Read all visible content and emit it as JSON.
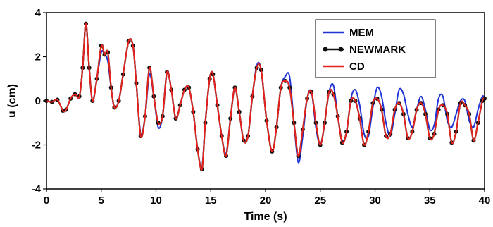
{
  "chart_data": {
    "type": "line",
    "title": "",
    "xlabel": "Time (s)",
    "ylabel": "u (cm)",
    "xlim": [
      0,
      40
    ],
    "ylim": [
      -4,
      4
    ],
    "xticks": [
      0,
      5,
      10,
      15,
      20,
      25,
      30,
      35,
      40
    ],
    "yticks": [
      -4,
      -2,
      0,
      2,
      4
    ],
    "grid": false,
    "legend_position": "top-right",
    "series": [
      {
        "name": "MEM",
        "color": "#1f33d6",
        "marker": "none",
        "x": [
          0.0,
          0.5,
          1.0,
          1.5,
          1.8,
          2.2,
          2.6,
          3.0,
          3.3,
          3.6,
          3.9,
          4.2,
          4.6,
          5.0,
          5.3,
          5.6,
          5.9,
          6.2,
          6.6,
          7.0,
          7.5,
          7.9,
          8.2,
          8.6,
          9.0,
          9.4,
          9.8,
          10.2,
          10.6,
          11.0,
          11.4,
          11.8,
          12.2,
          12.6,
          13.0,
          13.4,
          13.8,
          14.2,
          14.5,
          14.9,
          15.2,
          15.6,
          16.0,
          16.4,
          16.8,
          17.2,
          17.6,
          18.0,
          18.4,
          18.8,
          19.2,
          19.6,
          20.1,
          20.6,
          21.0,
          21.4,
          21.8,
          22.2,
          22.6,
          23.0,
          23.4,
          23.8,
          24.2,
          24.6,
          25.0,
          25.4,
          25.8,
          26.2,
          26.6,
          27.0,
          27.4,
          27.8,
          28.2,
          28.6,
          29.0,
          29.4,
          29.8,
          30.2,
          30.6,
          31.0,
          31.4,
          31.8,
          32.2,
          32.6,
          33.0,
          33.4,
          33.8,
          34.2,
          34.6,
          35.0,
          35.4,
          35.8,
          36.2,
          36.6,
          37.0,
          37.4,
          37.8,
          38.2,
          38.6,
          39.0,
          39.4,
          39.8,
          40.0
        ],
        "y": [
          0.0,
          -0.05,
          0.05,
          -0.45,
          -0.4,
          0.1,
          0.3,
          0.2,
          1.5,
          3.5,
          1.5,
          0.0,
          1.0,
          2.2,
          2.1,
          1.8,
          0.6,
          -0.3,
          0.0,
          1.2,
          2.7,
          2.5,
          0.8,
          -1.5,
          -0.7,
          1.2,
          0.2,
          -1.2,
          -0.7,
          1.3,
          0.5,
          -0.8,
          -0.2,
          0.5,
          0.6,
          -0.5,
          -2.2,
          -3.0,
          -1.0,
          1.0,
          1.2,
          -0.2,
          -1.6,
          -2.4,
          -0.8,
          0.6,
          -0.5,
          -1.8,
          -1.6,
          0.2,
          1.6,
          1.4,
          -0.9,
          -2.3,
          -1.2,
          0.6,
          1.1,
          1.1,
          -1.0,
          -2.8,
          -1.6,
          0.1,
          0.4,
          -1.2,
          -2.0,
          -1.0,
          0.4,
          0.7,
          -0.7,
          -1.8,
          -1.4,
          0.1,
          0.5,
          -0.2,
          -1.5,
          -1.6,
          -0.3,
          0.6,
          0.2,
          -1.0,
          -1.6,
          -0.6,
          0.5,
          0.3,
          -0.6,
          -1.2,
          -0.4,
          0.2,
          -0.4,
          -1.3,
          -1.1,
          0.1,
          0.2,
          -0.9,
          -1.2,
          -0.6,
          0.0,
          0.0,
          -0.9,
          -1.2,
          -0.4,
          0.2,
          0.1
        ]
      },
      {
        "name": "NEWMARK",
        "color": "#111111",
        "marker": "circle",
        "x": [
          0.0,
          0.5,
          1.0,
          1.5,
          1.8,
          2.2,
          2.6,
          3.0,
          3.3,
          3.6,
          3.9,
          4.2,
          4.6,
          5.0,
          5.3,
          5.6,
          5.9,
          6.2,
          6.6,
          7.0,
          7.5,
          7.9,
          8.2,
          8.6,
          9.0,
          9.4,
          9.8,
          10.2,
          10.6,
          11.0,
          11.4,
          11.8,
          12.2,
          12.6,
          13.0,
          13.4,
          13.8,
          14.2,
          14.5,
          14.9,
          15.2,
          15.6,
          16.0,
          16.4,
          16.8,
          17.2,
          17.6,
          18.0,
          18.4,
          18.8,
          19.2,
          19.6,
          20.1,
          20.6,
          21.0,
          21.4,
          21.8,
          22.2,
          22.6,
          23.0,
          23.4,
          23.8,
          24.2,
          24.6,
          25.0,
          25.4,
          25.8,
          26.2,
          26.6,
          27.0,
          27.4,
          27.8,
          28.2,
          28.6,
          29.0,
          29.4,
          29.8,
          30.2,
          30.6,
          31.0,
          31.4,
          31.8,
          32.2,
          32.6,
          33.0,
          33.4,
          33.8,
          34.2,
          34.6,
          35.0,
          35.4,
          35.8,
          36.2,
          36.6,
          37.0,
          37.4,
          37.8,
          38.2,
          38.6,
          39.0,
          39.4,
          39.8,
          40.0
        ],
        "y": [
          0.0,
          -0.05,
          0.05,
          -0.45,
          -0.4,
          0.1,
          0.3,
          0.2,
          1.5,
          3.5,
          1.5,
          0.0,
          1.0,
          2.5,
          2.1,
          2.2,
          0.6,
          -0.3,
          0.0,
          1.2,
          2.7,
          2.5,
          0.8,
          -1.6,
          -0.7,
          1.5,
          0.2,
          -1.0,
          -0.7,
          1.3,
          0.5,
          -0.8,
          -0.2,
          0.5,
          0.6,
          -0.5,
          -2.2,
          -3.1,
          -1.0,
          1.0,
          1.2,
          -0.2,
          -1.6,
          -2.5,
          -0.8,
          0.6,
          -0.5,
          -1.8,
          -1.6,
          0.2,
          1.5,
          1.4,
          -0.9,
          -2.3,
          -1.2,
          0.6,
          0.9,
          0.6,
          -1.0,
          -2.5,
          -1.3,
          0.1,
          0.4,
          -1.0,
          -2.0,
          -1.0,
          0.4,
          0.3,
          -0.7,
          -1.9,
          -1.4,
          0.0,
          0.0,
          -0.8,
          -2.0,
          -1.4,
          -0.1,
          0.1,
          -0.4,
          -1.6,
          -1.5,
          -0.4,
          -0.1,
          -0.6,
          -1.7,
          -1.4,
          -0.4,
          -0.1,
          -0.6,
          -1.7,
          -1.5,
          -0.4,
          -0.2,
          -0.6,
          -1.9,
          -1.4,
          -0.1,
          -0.2,
          -0.6,
          -1.8,
          -1.0,
          0.0,
          0.1
        ]
      },
      {
        "name": "CD",
        "color": "#e8231d",
        "marker": "none",
        "x": [
          0.0,
          0.5,
          1.0,
          1.5,
          1.8,
          2.2,
          2.6,
          3.0,
          3.3,
          3.6,
          3.9,
          4.2,
          4.6,
          5.0,
          5.3,
          5.6,
          5.9,
          6.2,
          6.6,
          7.0,
          7.5,
          7.9,
          8.2,
          8.6,
          9.0,
          9.4,
          9.8,
          10.2,
          10.6,
          11.0,
          11.4,
          11.8,
          12.2,
          12.6,
          13.0,
          13.4,
          13.8,
          14.2,
          14.5,
          14.9,
          15.2,
          15.6,
          16.0,
          16.4,
          16.8,
          17.2,
          17.6,
          18.0,
          18.4,
          18.8,
          19.2,
          19.6,
          20.1,
          20.6,
          21.0,
          21.4,
          21.8,
          22.2,
          22.6,
          23.0,
          23.4,
          23.8,
          24.2,
          24.6,
          25.0,
          25.4,
          25.8,
          26.2,
          26.6,
          27.0,
          27.4,
          27.8,
          28.2,
          28.6,
          29.0,
          29.4,
          29.8,
          30.2,
          30.6,
          31.0,
          31.4,
          31.8,
          32.2,
          32.6,
          33.0,
          33.4,
          33.8,
          34.2,
          34.6,
          35.0,
          35.4,
          35.8,
          36.2,
          36.6,
          37.0,
          37.4,
          37.8,
          38.2,
          38.6,
          39.0,
          39.4,
          39.8,
          40.0
        ],
        "y": [
          0.0,
          -0.05,
          0.05,
          -0.45,
          -0.4,
          0.1,
          0.3,
          0.2,
          1.5,
          3.5,
          1.5,
          0.0,
          1.0,
          2.5,
          2.1,
          2.2,
          0.6,
          -0.3,
          0.0,
          1.2,
          2.7,
          2.5,
          0.8,
          -1.6,
          -0.7,
          1.5,
          0.2,
          -1.0,
          -0.7,
          1.3,
          0.5,
          -0.8,
          -0.2,
          0.5,
          0.6,
          -0.5,
          -2.2,
          -3.1,
          -1.0,
          1.0,
          1.2,
          -0.2,
          -1.6,
          -2.5,
          -0.8,
          0.6,
          -0.5,
          -1.8,
          -1.6,
          0.2,
          1.5,
          1.4,
          -0.9,
          -2.3,
          -1.2,
          0.6,
          0.9,
          0.6,
          -1.0,
          -2.5,
          -1.3,
          0.1,
          0.4,
          -1.0,
          -2.0,
          -1.0,
          0.4,
          0.3,
          -0.7,
          -1.9,
          -1.4,
          0.0,
          0.0,
          -0.8,
          -2.0,
          -1.4,
          -0.1,
          0.1,
          -0.4,
          -1.6,
          -1.5,
          -0.4,
          -0.1,
          -0.6,
          -1.7,
          -1.4,
          -0.4,
          -0.1,
          -0.6,
          -1.7,
          -1.5,
          -0.4,
          -0.2,
          -0.6,
          -1.9,
          -1.4,
          -0.1,
          -0.2,
          -0.6,
          -1.8,
          -1.0,
          0.0,
          0.1
        ]
      }
    ]
  }
}
